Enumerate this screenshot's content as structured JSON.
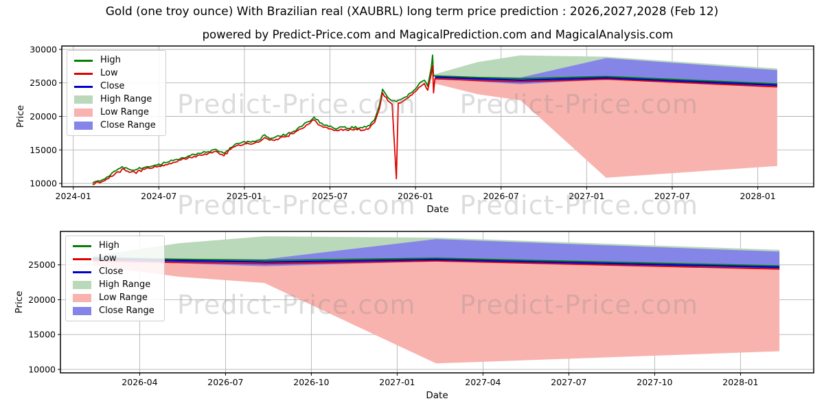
{
  "title": "Gold (one troy ounce) With Brazilian real (XAUBRL) long term price prediction : 2026,2027,2028 (Feb 12)",
  "subtitle": "powered by Predict-Price.com and MagicalPrediction.com and MagicalAnalysis.com",
  "watermark": {
    "text": "Predict-Price.com"
  },
  "colors": {
    "high_line": "#008000",
    "low_line": "#e00000",
    "close_line": "#0000cd",
    "high_range": "#bad8ba",
    "low_range": "#f9b3af",
    "close_range": "#8585e8",
    "grid": "#b3b3b3",
    "frame": "#000000",
    "watermark_gray": "#8c8c8c"
  },
  "legend": {
    "items": [
      {
        "label": "High",
        "swatch": "line",
        "color": "#008000"
      },
      {
        "label": "Low",
        "swatch": "line",
        "color": "#e00000"
      },
      {
        "label": "Close",
        "swatch": "line",
        "color": "#0000cd"
      },
      {
        "label": "High Range",
        "swatch": "patch",
        "color": "#bad8ba"
      },
      {
        "label": "Low Range",
        "swatch": "patch",
        "color": "#f9b3af"
      },
      {
        "label": "Close Range",
        "swatch": "patch",
        "color": "#8585e8"
      }
    ]
  },
  "chart_data": [
    {
      "type": "line",
      "title": "historical price 2024-02 to 2026-02 plus 2-year forecast ranges",
      "xlabel": "Date",
      "ylabel": "Price",
      "x_ticks": [
        "2024-01",
        "2024-07",
        "2025-01",
        "2025-07",
        "2026-01",
        "2026-07",
        "2027-01",
        "2027-07",
        "2028-01"
      ],
      "y_ticks": [
        10000,
        15000,
        20000,
        25000,
        30000
      ],
      "x_domain": [
        "2023-12-07",
        "2028-04-29"
      ],
      "y_domain": [
        9500,
        30500
      ],
      "grid": true,
      "legend_position": "upper-left",
      "history": {
        "columns": [
          "date",
          "high",
          "low"
        ],
        "points": [
          [
            "2024-02-12",
            10050,
            9800
          ],
          [
            "2024-03-01",
            10500,
            10250
          ],
          [
            "2024-03-15",
            11000,
            10700
          ],
          [
            "2024-04-01",
            11900,
            11600
          ],
          [
            "2024-04-14",
            12500,
            12150
          ],
          [
            "2024-05-03",
            12000,
            11700
          ],
          [
            "2024-05-17",
            12150,
            11850
          ],
          [
            "2024-06-01",
            12400,
            12100
          ],
          [
            "2024-06-15",
            12550,
            12250
          ],
          [
            "2024-07-01",
            12900,
            12600
          ],
          [
            "2024-07-15",
            13100,
            12800
          ],
          [
            "2024-08-01",
            13400,
            13100
          ],
          [
            "2024-08-18",
            13800,
            13500
          ],
          [
            "2024-09-01",
            14000,
            13700
          ],
          [
            "2024-09-15",
            14350,
            14050
          ],
          [
            "2024-10-01",
            14500,
            14200
          ],
          [
            "2024-10-15",
            14750,
            14450
          ],
          [
            "2024-11-01",
            15100,
            14800
          ],
          [
            "2024-11-18",
            14500,
            14100
          ],
          [
            "2024-12-01",
            15350,
            15050
          ],
          [
            "2024-12-15",
            15950,
            15650
          ],
          [
            "2025-01-01",
            16250,
            15900
          ],
          [
            "2025-01-15",
            16150,
            15850
          ],
          [
            "2025-02-01",
            16450,
            16150
          ],
          [
            "2025-02-14",
            17250,
            16850
          ],
          [
            "2025-03-01",
            16750,
            16450
          ],
          [
            "2025-03-15",
            17050,
            16750
          ],
          [
            "2025-04-01",
            17350,
            17050
          ],
          [
            "2025-04-15",
            17800,
            17450
          ],
          [
            "2025-05-01",
            18500,
            18150
          ],
          [
            "2025-05-15",
            19200,
            18800
          ],
          [
            "2025-05-28",
            19900,
            19500
          ],
          [
            "2025-06-10",
            19000,
            18650
          ],
          [
            "2025-06-25",
            18700,
            18350
          ],
          [
            "2025-07-10",
            18200,
            17900
          ],
          [
            "2025-07-25",
            18450,
            18100
          ],
          [
            "2025-08-10",
            18200,
            17900
          ],
          [
            "2025-08-25",
            18500,
            18150
          ],
          [
            "2025-09-10",
            18300,
            17950
          ],
          [
            "2025-09-25",
            18650,
            18300
          ],
          [
            "2025-10-05",
            19500,
            19100
          ],
          [
            "2025-10-15",
            21600,
            21100
          ],
          [
            "2025-10-22",
            24050,
            23500
          ],
          [
            "2025-11-03",
            22800,
            22300
          ],
          [
            "2025-11-12",
            22300,
            21800
          ],
          [
            "2025-11-21",
            22200,
            10700
          ],
          [
            "2025-11-25",
            22400,
            22000
          ],
          [
            "2025-12-10",
            22900,
            22500
          ],
          [
            "2025-12-24",
            23600,
            23200
          ],
          [
            "2026-01-08",
            24800,
            24300
          ],
          [
            "2026-01-20",
            25400,
            24900
          ],
          [
            "2026-01-27",
            24500,
            23900
          ],
          [
            "2026-02-04",
            27200,
            26300
          ],
          [
            "2026-02-07",
            29150,
            27600
          ],
          [
            "2026-02-09",
            26000,
            23500
          ],
          [
            "2026-02-12",
            26100,
            25700
          ]
        ]
      },
      "forecast": {
        "dates": [
          "2026-02-12",
          "2026-05-12",
          "2026-08-12",
          "2027-02-12",
          "2028-02-12"
        ],
        "high": [
          26050,
          25800,
          25650,
          25950,
          24850
        ],
        "low": [
          25600,
          25350,
          25150,
          25550,
          24400
        ],
        "close": [
          25850,
          25600,
          25400,
          25750,
          24650
        ],
        "high_range": {
          "upper": [
            26300,
            28100,
            29100,
            28900,
            27150
          ],
          "lower": [
            26050,
            25800,
            25650,
            25950,
            24850
          ]
        },
        "low_range": {
          "upper": [
            25500,
            25250,
            25050,
            25450,
            24350
          ],
          "lower": [
            24900,
            23300,
            22400,
            10850,
            12600
          ]
        },
        "close_range": {
          "upper": [
            26100,
            25900,
            25800,
            28700,
            26900
          ],
          "lower": [
            25650,
            25200,
            24800,
            25500,
            24350
          ]
        }
      }
    },
    {
      "type": "line",
      "title": "forecast detail 2026-02 to 2028-02",
      "xlabel": "Date",
      "ylabel": "Price",
      "x_ticks": [
        "2026-04",
        "2026-07",
        "2026-10",
        "2027-01",
        "2027-04",
        "2027-07",
        "2027-10",
        "2028-01"
      ],
      "y_ticks": [
        10000,
        15000,
        20000,
        25000
      ],
      "x_domain": [
        "2026-01-08",
        "2028-03-18"
      ],
      "y_domain": [
        9500,
        29800
      ],
      "grid": true,
      "legend_position": "upper-left",
      "forecast": {
        "dates": [
          "2026-02-12",
          "2026-05-12",
          "2026-08-12",
          "2027-02-12",
          "2028-02-12"
        ],
        "high": [
          26050,
          25800,
          25650,
          25950,
          24850
        ],
        "low": [
          25600,
          25350,
          25150,
          25550,
          24400
        ],
        "close": [
          25850,
          25600,
          25400,
          25750,
          24650
        ],
        "high_range": {
          "upper": [
            26300,
            28100,
            29100,
            28900,
            27150
          ],
          "lower": [
            26050,
            25800,
            25650,
            25950,
            24850
          ]
        },
        "low_range": {
          "upper": [
            25500,
            25250,
            25050,
            25450,
            24350
          ],
          "lower": [
            24900,
            23300,
            22400,
            10850,
            12600
          ]
        },
        "close_range": {
          "upper": [
            26100,
            25900,
            25800,
            28700,
            26900
          ],
          "lower": [
            25650,
            25200,
            24800,
            25500,
            24350
          ]
        }
      }
    }
  ]
}
